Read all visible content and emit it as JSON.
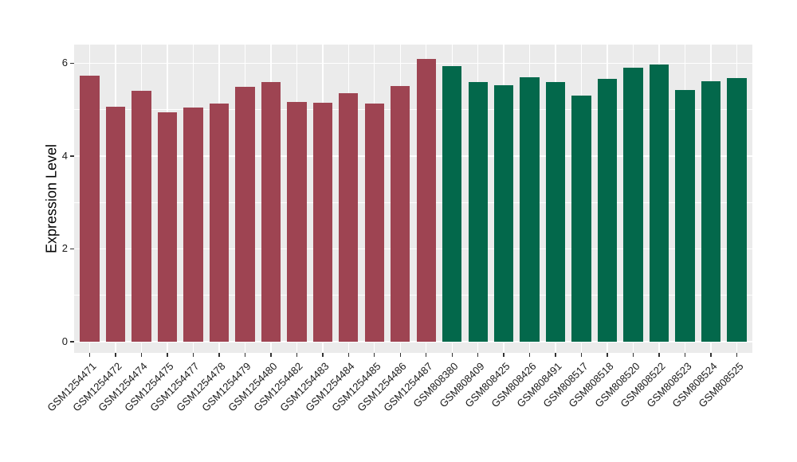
{
  "chart_data": {
    "type": "bar",
    "title": "",
    "xlabel": "",
    "ylabel": "Expression Level",
    "legend": "none",
    "grid": "on",
    "panel_background": "#EBEBEB",
    "grid_color": "#FFFFFF",
    "tick_color": "#333333",
    "axis_text_color": "#1A1A1A",
    "ylim": [
      -0.24,
      6.4
    ],
    "yticks_major": [
      0,
      2,
      4,
      6
    ],
    "ytick_labels": [
      "0",
      "2",
      "4",
      "6"
    ],
    "yticks_minor": [
      1,
      3,
      5
    ],
    "categories": [
      "GSM1254471",
      "GSM1254472",
      "GSM1254474",
      "GSM1254475",
      "GSM1254477",
      "GSM1254478",
      "GSM1254479",
      "GSM1254480",
      "GSM1254482",
      "GSM1254483",
      "GSM1254484",
      "GSM1254485",
      "GSM1254486",
      "GSM1254487",
      "GSM808380",
      "GSM808409",
      "GSM808425",
      "GSM808426",
      "GSM808491",
      "GSM808517",
      "GSM808518",
      "GSM808520",
      "GSM808522",
      "GSM808523",
      "GSM808524",
      "GSM808525"
    ],
    "values": [
      5.73,
      5.06,
      5.4,
      4.94,
      5.04,
      5.13,
      5.49,
      5.59,
      5.16,
      5.14,
      5.36,
      5.13,
      5.51,
      6.09,
      5.93,
      5.6,
      5.52,
      5.69,
      5.6,
      5.3,
      5.66,
      5.91,
      5.97,
      5.43,
      5.61,
      5.68
    ],
    "bar_colors": [
      "#9E4452",
      "#9E4452",
      "#9E4452",
      "#9E4452",
      "#9E4452",
      "#9E4452",
      "#9E4452",
      "#9E4452",
      "#9E4452",
      "#9E4452",
      "#9E4452",
      "#9E4452",
      "#9E4452",
      "#9E4452",
      "#03684B",
      "#03684B",
      "#03684B",
      "#03684B",
      "#03684B",
      "#03684B",
      "#03684B",
      "#03684B",
      "#03684B",
      "#03684B",
      "#03684B",
      "#03684B"
    ]
  }
}
